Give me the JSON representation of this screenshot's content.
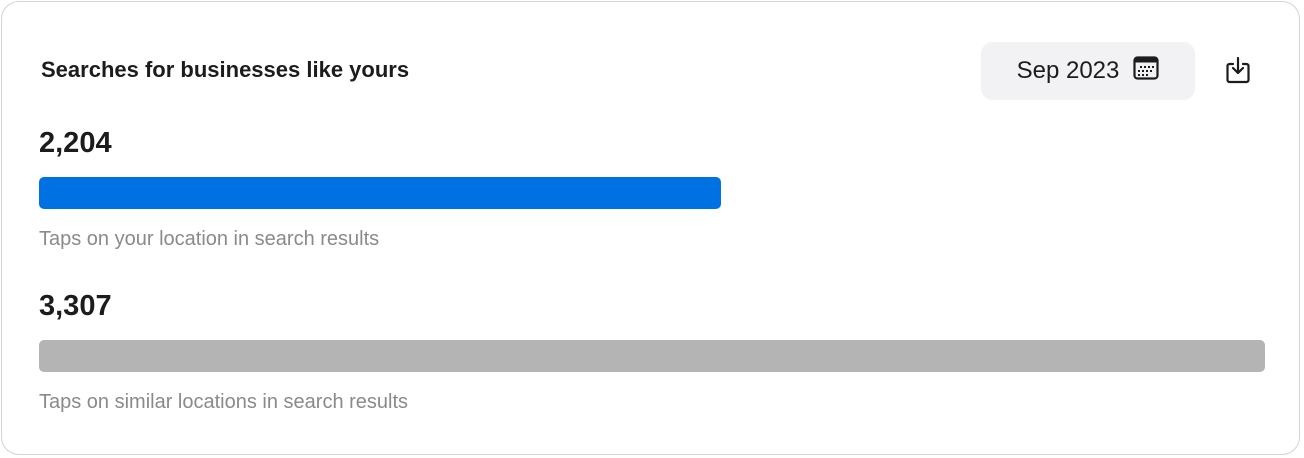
{
  "card": {
    "title": "Searches for businesses like yours",
    "date_button": {
      "label": "Sep 2023",
      "icon": "calendar-icon"
    },
    "download_button": {
      "icon": "download-icon"
    }
  },
  "metrics": [
    {
      "value": "2,204",
      "label": "Taps on your location in search results",
      "bar_fill_percent": 55.6,
      "color": "#0071e3"
    },
    {
      "value": "3,307",
      "label": "Taps on similar locations in search results",
      "bar_fill_percent": 100,
      "color": "#b4b4b4"
    }
  ]
}
